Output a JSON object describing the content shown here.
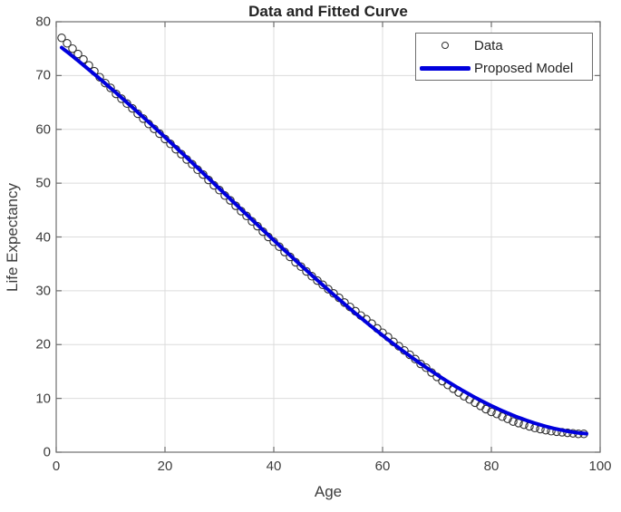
{
  "chart_data": {
    "type": "scatter",
    "title": "Data and Fitted Curve",
    "xlabel": "Age",
    "ylabel": "Life Expectancy",
    "xlim": [
      0,
      100
    ],
    "ylim": [
      0,
      80
    ],
    "xticks": [
      0,
      20,
      40,
      60,
      80,
      100
    ],
    "yticks": [
      0,
      10,
      20,
      30,
      40,
      50,
      60,
      70,
      80
    ],
    "grid": true,
    "colors": {
      "model_blue": "#0000dd",
      "marker_edge": "#303030",
      "axis": "#6e6e6e",
      "gridline": "#dcdcdc"
    },
    "legend": {
      "position": "northeast",
      "entries": [
        {
          "label": "Data",
          "marker": "circle"
        },
        {
          "label": "Proposed Model",
          "marker": "line"
        }
      ]
    },
    "series": [
      {
        "name": "Data",
        "type": "scatter",
        "marker": "o",
        "age_start": 1,
        "age_step": 1,
        "values": [
          77.0,
          76.0,
          75.0,
          74.0,
          73.0,
          71.9,
          70.8,
          69.7,
          68.6,
          67.7,
          66.6,
          65.7,
          64.8,
          63.9,
          62.9,
          62.0,
          61.0,
          60.1,
          59.2,
          58.2,
          57.3,
          56.3,
          55.4,
          54.4,
          53.5,
          52.5,
          51.6,
          50.6,
          49.6,
          48.7,
          47.7,
          46.8,
          45.8,
          44.8,
          43.9,
          42.9,
          42.0,
          41.0,
          40.0,
          39.1,
          38.2,
          37.2,
          36.3,
          35.3,
          34.5,
          33.6,
          32.7,
          31.9,
          31.1,
          30.3,
          29.5,
          28.7,
          27.8,
          27.0,
          26.2,
          25.4,
          24.7,
          23.9,
          23.0,
          22.2,
          21.4,
          20.5,
          19.7,
          18.9,
          18.1,
          17.3,
          16.4,
          15.7,
          14.8,
          14.0,
          13.2,
          12.5,
          11.8,
          11.1,
          10.4,
          9.8,
          9.2,
          8.6,
          8.0,
          7.5,
          7.1,
          6.6,
          6.2,
          5.7,
          5.4,
          5.1,
          4.8,
          4.5,
          4.3,
          4.1,
          3.9,
          3.8,
          3.7,
          3.6,
          3.5,
          3.4,
          3.4
        ]
      },
      {
        "name": "Proposed Model",
        "type": "line",
        "line_width": 4,
        "poly_coeffs": [
          75.983,
          -0.777268,
          -0.00605773,
          6.5622e-05
        ],
        "x_start": 1,
        "x_end": 97.5
      }
    ]
  }
}
